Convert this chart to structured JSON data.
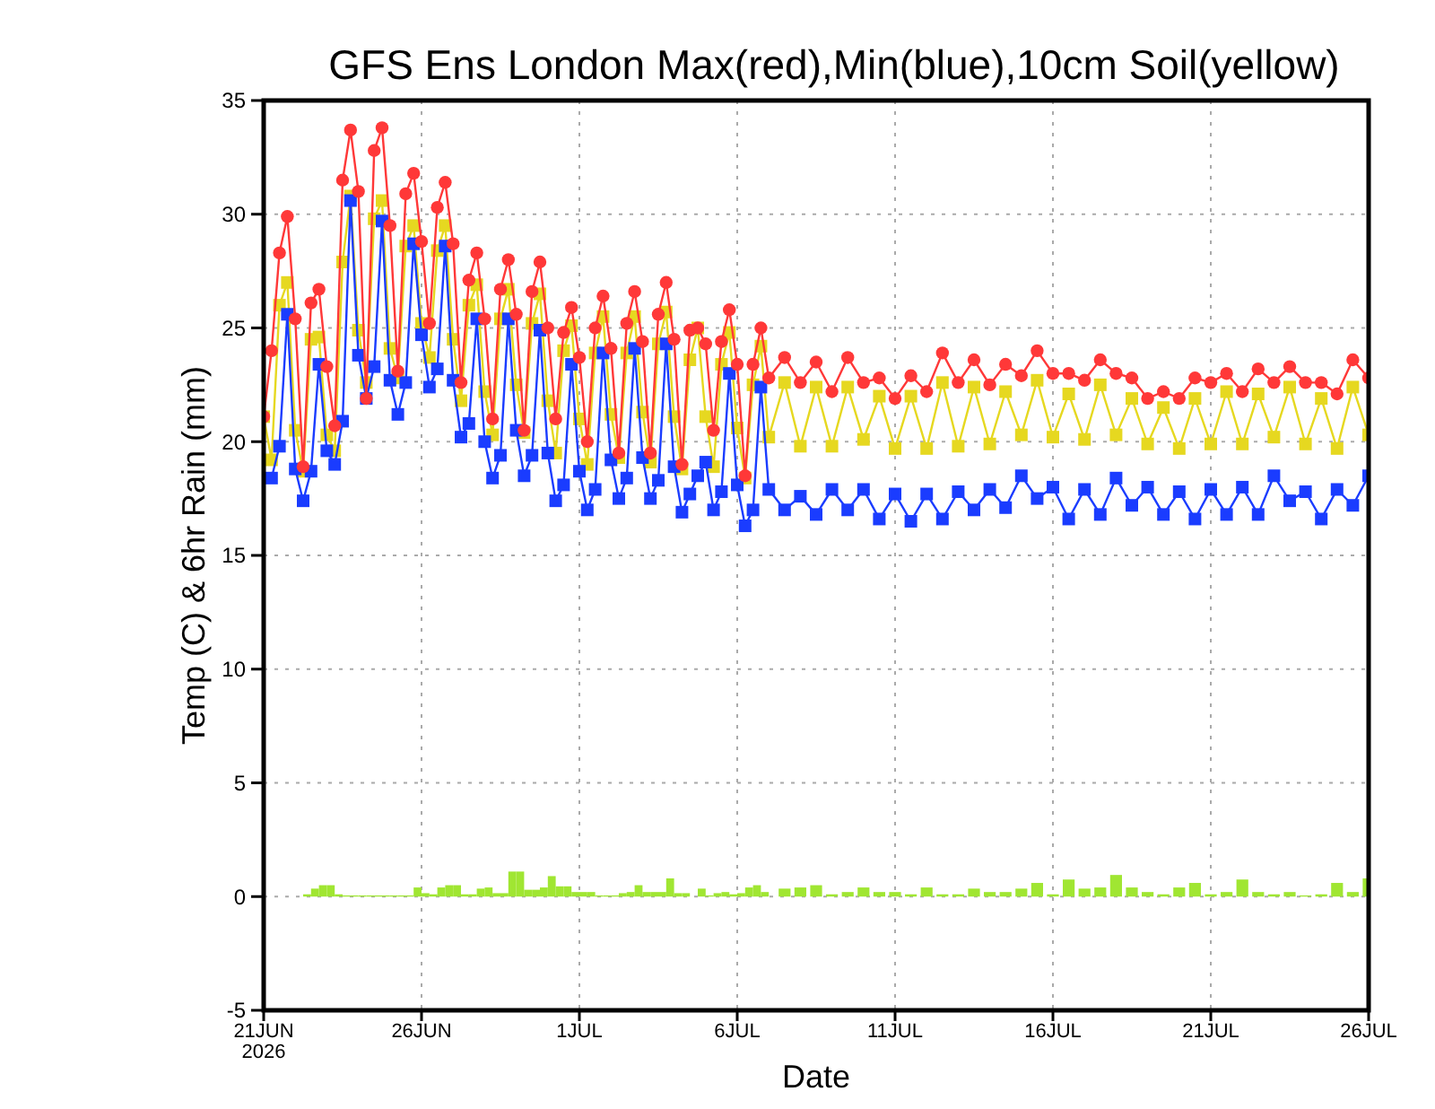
{
  "chart_data": {
    "type": "line",
    "title": "GFS Ens London Max(red),Min(blue),10cm Soil(yellow)",
    "xlabel": "Date",
    "ylabel": "Temp (C) & 6hr Rain (mm)",
    "x": [
      "2026-06-21T00:00",
      "2026-06-21T06:00",
      "2026-06-21T12:00",
      "2026-06-21T18:00",
      "2026-06-22T00:00",
      "2026-06-22T06:00",
      "2026-06-22T12:00",
      "2026-06-22T18:00",
      "2026-06-23T00:00",
      "2026-06-23T06:00",
      "2026-06-23T12:00",
      "2026-06-23T18:00",
      "2026-06-24T00:00",
      "2026-06-24T06:00",
      "2026-06-24T12:00",
      "2026-06-24T18:00",
      "2026-06-25T00:00",
      "2026-06-25T06:00",
      "2026-06-25T12:00",
      "2026-06-25T18:00",
      "2026-06-26T00:00",
      "2026-06-26T06:00",
      "2026-06-26T12:00",
      "2026-06-26T18:00",
      "2026-06-27T00:00",
      "2026-06-27T06:00",
      "2026-06-27T12:00",
      "2026-06-27T18:00",
      "2026-06-28T00:00",
      "2026-06-28T06:00",
      "2026-06-28T12:00",
      "2026-06-28T18:00",
      "2026-06-29T00:00",
      "2026-06-29T06:00",
      "2026-06-29T12:00",
      "2026-06-29T18:00",
      "2026-06-30T00:00",
      "2026-06-30T06:00",
      "2026-06-30T12:00",
      "2026-06-30T18:00",
      "2026-07-01T00:00",
      "2026-07-01T06:00",
      "2026-07-01T12:00",
      "2026-07-01T18:00",
      "2026-07-02T00:00",
      "2026-07-02T06:00",
      "2026-07-02T12:00",
      "2026-07-02T18:00",
      "2026-07-03T00:00",
      "2026-07-03T06:00",
      "2026-07-03T12:00",
      "2026-07-03T18:00",
      "2026-07-04T00:00",
      "2026-07-04T06:00",
      "2026-07-04T12:00",
      "2026-07-04T18:00",
      "2026-07-05T00:00",
      "2026-07-05T06:00",
      "2026-07-05T12:00",
      "2026-07-05T18:00",
      "2026-07-06T00:00",
      "2026-07-06T06:00",
      "2026-07-06T12:00",
      "2026-07-06T18:00",
      "2026-07-07T00:00",
      "2026-07-07T12:00",
      "2026-07-08T00:00",
      "2026-07-08T12:00",
      "2026-07-09T00:00",
      "2026-07-09T12:00",
      "2026-07-10T00:00",
      "2026-07-10T12:00",
      "2026-07-11T00:00",
      "2026-07-11T12:00",
      "2026-07-12T00:00",
      "2026-07-12T12:00",
      "2026-07-13T00:00",
      "2026-07-13T12:00",
      "2026-07-14T00:00",
      "2026-07-14T12:00",
      "2026-07-15T00:00",
      "2026-07-15T12:00",
      "2026-07-16T00:00",
      "2026-07-16T12:00",
      "2026-07-17T00:00",
      "2026-07-17T12:00",
      "2026-07-18T00:00",
      "2026-07-18T12:00",
      "2026-07-19T00:00",
      "2026-07-19T12:00",
      "2026-07-20T00:00",
      "2026-07-20T12:00",
      "2026-07-21T00:00",
      "2026-07-21T12:00",
      "2026-07-22T00:00",
      "2026-07-22T12:00",
      "2026-07-23T00:00",
      "2026-07-23T12:00",
      "2026-07-24T00:00",
      "2026-07-24T12:00",
      "2026-07-25T00:00",
      "2026-07-25T12:00",
      "2026-07-26T00:00"
    ],
    "series": [
      {
        "type": "bar",
        "color": "#a0e632",
        "x": [
          "2026-06-22T09:00",
          "2026-06-22T15:00",
          "2026-06-22T21:00",
          "2026-06-23T03:00",
          "2026-06-23T09:00",
          "2026-06-23T15:00",
          "2026-06-23T21:00",
          "2026-06-24T03:00",
          "2026-06-24T09:00",
          "2026-06-24T15:00",
          "2026-06-24T21:00",
          "2026-06-25T03:00",
          "2026-06-25T09:00",
          "2026-06-25T15:00",
          "2026-06-25T21:00",
          "2026-06-26T03:00",
          "2026-06-26T09:00",
          "2026-06-26T15:00",
          "2026-06-26T21:00",
          "2026-06-27T03:00",
          "2026-06-27T09:00",
          "2026-06-27T15:00",
          "2026-06-27T21:00",
          "2026-06-28T03:00",
          "2026-06-28T09:00",
          "2026-06-28T15:00",
          "2026-06-28T21:00",
          "2026-06-29T03:00",
          "2026-06-29T09:00",
          "2026-06-29T15:00",
          "2026-06-29T21:00",
          "2026-06-30T03:00",
          "2026-06-30T09:00",
          "2026-06-30T15:00",
          "2026-06-30T21:00",
          "2026-07-01T03:00",
          "2026-07-01T09:00",
          "2026-07-01T15:00",
          "2026-07-01T21:00",
          "2026-07-02T03:00",
          "2026-07-02T09:00",
          "2026-07-02T15:00",
          "2026-07-02T21:00",
          "2026-07-03T03:00",
          "2026-07-03T09:00",
          "2026-07-03T15:00",
          "2026-07-03T21:00",
          "2026-07-04T03:00",
          "2026-07-04T09:00",
          "2026-07-04T15:00",
          "2026-07-04T21:00",
          "2026-07-05T03:00",
          "2026-07-05T09:00",
          "2026-07-05T15:00",
          "2026-07-05T21:00",
          "2026-07-06T03:00",
          "2026-07-06T09:00",
          "2026-07-06T15:00",
          "2026-07-06T21:00",
          "2026-07-07T12:00",
          "2026-07-08T00:00",
          "2026-07-08T12:00",
          "2026-07-09T00:00",
          "2026-07-09T12:00",
          "2026-07-10T00:00",
          "2026-07-10T12:00",
          "2026-07-11T00:00",
          "2026-07-11T12:00",
          "2026-07-12T00:00",
          "2026-07-12T12:00",
          "2026-07-13T00:00",
          "2026-07-13T12:00",
          "2026-07-14T00:00",
          "2026-07-14T12:00",
          "2026-07-15T00:00",
          "2026-07-15T12:00",
          "2026-07-16T00:00",
          "2026-07-16T12:00",
          "2026-07-17T00:00",
          "2026-07-17T12:00",
          "2026-07-18T00:00",
          "2026-07-18T12:00",
          "2026-07-19T00:00",
          "2026-07-19T12:00",
          "2026-07-20T00:00",
          "2026-07-20T12:00",
          "2026-07-21T00:00",
          "2026-07-21T12:00",
          "2026-07-22T00:00",
          "2026-07-22T12:00",
          "2026-07-23T00:00",
          "2026-07-23T12:00",
          "2026-07-24T00:00",
          "2026-07-24T12:00",
          "2026-07-25T00:00",
          "2026-07-25T12:00",
          "2026-07-26T00:00"
        ],
        "values": [
          0.1,
          0.35,
          0.5,
          0.5,
          0.1,
          0.05,
          0.05,
          0.05,
          0.05,
          0.05,
          0.05,
          0.05,
          0.05,
          0.05,
          0.4,
          0.15,
          0.1,
          0.4,
          0.5,
          0.5,
          0.1,
          0.1,
          0.35,
          0.4,
          0.15,
          0.15,
          1.1,
          1.1,
          0.3,
          0.3,
          0.4,
          0.9,
          0.45,
          0.45,
          0.2,
          0.2,
          0.2,
          0.05,
          0.05,
          0.05,
          0.15,
          0.2,
          0.5,
          0.2,
          0.2,
          0.2,
          0.8,
          0.15,
          0.15,
          0,
          0.35,
          0.05,
          0.15,
          0.2,
          0.1,
          0.15,
          0.4,
          0.5,
          0.2,
          0.35,
          0.4,
          0.5,
          0.1,
          0.2,
          0.4,
          0.2,
          0.2,
          0.1,
          0.4,
          0.1,
          0.1,
          0.35,
          0.2,
          0.2,
          0.35,
          0.6,
          0.1,
          0.75,
          0.35,
          0.4,
          0.95,
          0.4,
          0.2,
          0.1,
          0.4,
          0.6,
          0.1,
          0.2,
          0.75,
          0.2,
          0.1,
          0.2,
          0.05,
          0.1,
          0.6,
          0.2,
          0.8
        ]
      },
      {
        "color": "#e6d820",
        "marker": "square",
        "values": [
          21.1,
          19.2,
          26.0,
          27.0,
          20.5,
          18.7,
          24.5,
          24.6,
          20.3,
          19.6,
          27.9,
          30.8,
          24.9,
          22.6,
          29.8,
          30.6,
          24.1,
          22.8,
          28.6,
          29.5,
          25.2,
          23.7,
          28.4,
          29.5,
          24.5,
          21.8,
          26.0,
          26.9,
          22.2,
          20.3,
          25.4,
          26.7,
          22.5,
          20.4,
          25.2,
          26.5,
          21.8,
          19.5,
          24.0,
          25.1,
          21.0,
          19.0,
          23.9,
          25.5,
          21.2,
          19.3,
          23.9,
          25.5,
          21.3,
          19.1,
          24.3,
          25.7,
          21.1,
          18.8,
          23.6,
          25.0,
          21.1,
          18.9,
          23.4,
          24.8,
          20.6,
          18.4,
          22.5,
          24.2,
          20.2,
          22.6,
          19.8,
          22.4,
          19.8,
          22.4,
          20.1,
          22.0,
          19.7,
          22.0,
          19.7,
          22.6,
          19.8,
          22.4,
          19.9,
          22.2,
          20.3,
          22.7,
          20.2,
          22.1,
          20.1,
          22.5,
          20.3,
          21.9,
          19.9,
          21.5,
          19.7,
          21.9,
          19.9,
          22.2,
          19.9,
          22.1,
          20.2,
          22.4,
          19.9,
          21.9,
          19.7,
          22.4,
          20.3
        ]
      },
      {
        "color": "#1a3cff",
        "marker": "square",
        "values": [
          null,
          18.4,
          19.8,
          25.6,
          18.8,
          17.4,
          18.7,
          23.4,
          19.6,
          19.0,
          20.9,
          30.6,
          23.8,
          21.9,
          23.3,
          29.7,
          22.7,
          21.2,
          22.6,
          28.7,
          24.7,
          22.4,
          23.2,
          28.6,
          22.7,
          20.2,
          20.8,
          25.4,
          20.0,
          18.4,
          19.4,
          25.4,
          20.5,
          18.5,
          19.4,
          24.9,
          19.5,
          17.4,
          18.1,
          23.4,
          18.7,
          17.0,
          17.9,
          23.9,
          19.2,
          17.5,
          18.4,
          24.1,
          19.3,
          17.5,
          18.3,
          24.3,
          18.9,
          16.9,
          17.7,
          18.5,
          19.1,
          17.0,
          17.8,
          23.0,
          18.1,
          16.3,
          17.0,
          22.4,
          17.9,
          17.0,
          17.6,
          16.8,
          17.9,
          17.0,
          17.9,
          16.6,
          17.7,
          16.5,
          17.7,
          16.6,
          17.8,
          17.0,
          17.9,
          17.1,
          18.5,
          17.5,
          18.0,
          16.6,
          17.9,
          16.8,
          18.4,
          17.2,
          18.0,
          16.8,
          17.8,
          16.6,
          17.9,
          16.8,
          18.0,
          16.8,
          18.5,
          17.4,
          17.8,
          16.6,
          17.9,
          17.2,
          18.5
        ]
      },
      {
        "color": "#ff3838",
        "marker": "circle",
        "values": [
          21.1,
          24.0,
          28.3,
          29.9,
          25.4,
          18.9,
          26.1,
          26.7,
          23.3,
          20.7,
          31.5,
          33.7,
          31.0,
          21.9,
          32.8,
          33.8,
          29.5,
          23.1,
          30.9,
          31.8,
          28.8,
          25.2,
          30.3,
          31.4,
          28.7,
          22.6,
          27.1,
          28.3,
          25.4,
          21.0,
          26.7,
          28.0,
          25.6,
          20.5,
          26.6,
          27.9,
          25.0,
          21.0,
          24.8,
          25.9,
          23.7,
          20.0,
          25.0,
          26.4,
          24.1,
          19.5,
          25.2,
          26.6,
          24.4,
          19.5,
          25.6,
          27.0,
          24.5,
          19.0,
          24.9,
          25.0,
          24.3,
          20.5,
          24.4,
          25.8,
          23.4,
          18.5,
          23.4,
          25.0,
          22.8,
          23.7,
          22.6,
          23.5,
          22.2,
          23.7,
          22.6,
          22.8,
          21.9,
          22.9,
          22.2,
          23.9,
          22.6,
          23.6,
          22.5,
          23.4,
          22.9,
          24.0,
          23.0,
          23.0,
          22.7,
          23.6,
          23.0,
          22.8,
          21.9,
          22.2,
          21.9,
          22.8,
          22.6,
          23.0,
          22.2,
          23.2,
          22.6,
          23.3,
          22.6,
          22.6,
          22.1,
          23.6,
          22.8
        ]
      }
    ],
    "xlim": [
      "2026-06-21",
      "2026-07-26"
    ],
    "xticks": [
      {
        "value": "2026-06-21",
        "label": "21JUN\n2026"
      },
      {
        "value": "2026-06-26",
        "label": "26JUN"
      },
      {
        "value": "2026-07-01",
        "label": "1JUL"
      },
      {
        "value": "2026-07-06",
        "label": "6JUL"
      },
      {
        "value": "2026-07-11",
        "label": "11JUL"
      },
      {
        "value": "2026-07-16",
        "label": "16JUL"
      },
      {
        "value": "2026-07-21",
        "label": "21JUL"
      },
      {
        "value": "2026-07-26",
        "label": "26JUL"
      }
    ],
    "ylim": [
      -5,
      35
    ],
    "yticks": [
      -5,
      0,
      5,
      10,
      15,
      20,
      25,
      30,
      35
    ],
    "grid": true
  }
}
